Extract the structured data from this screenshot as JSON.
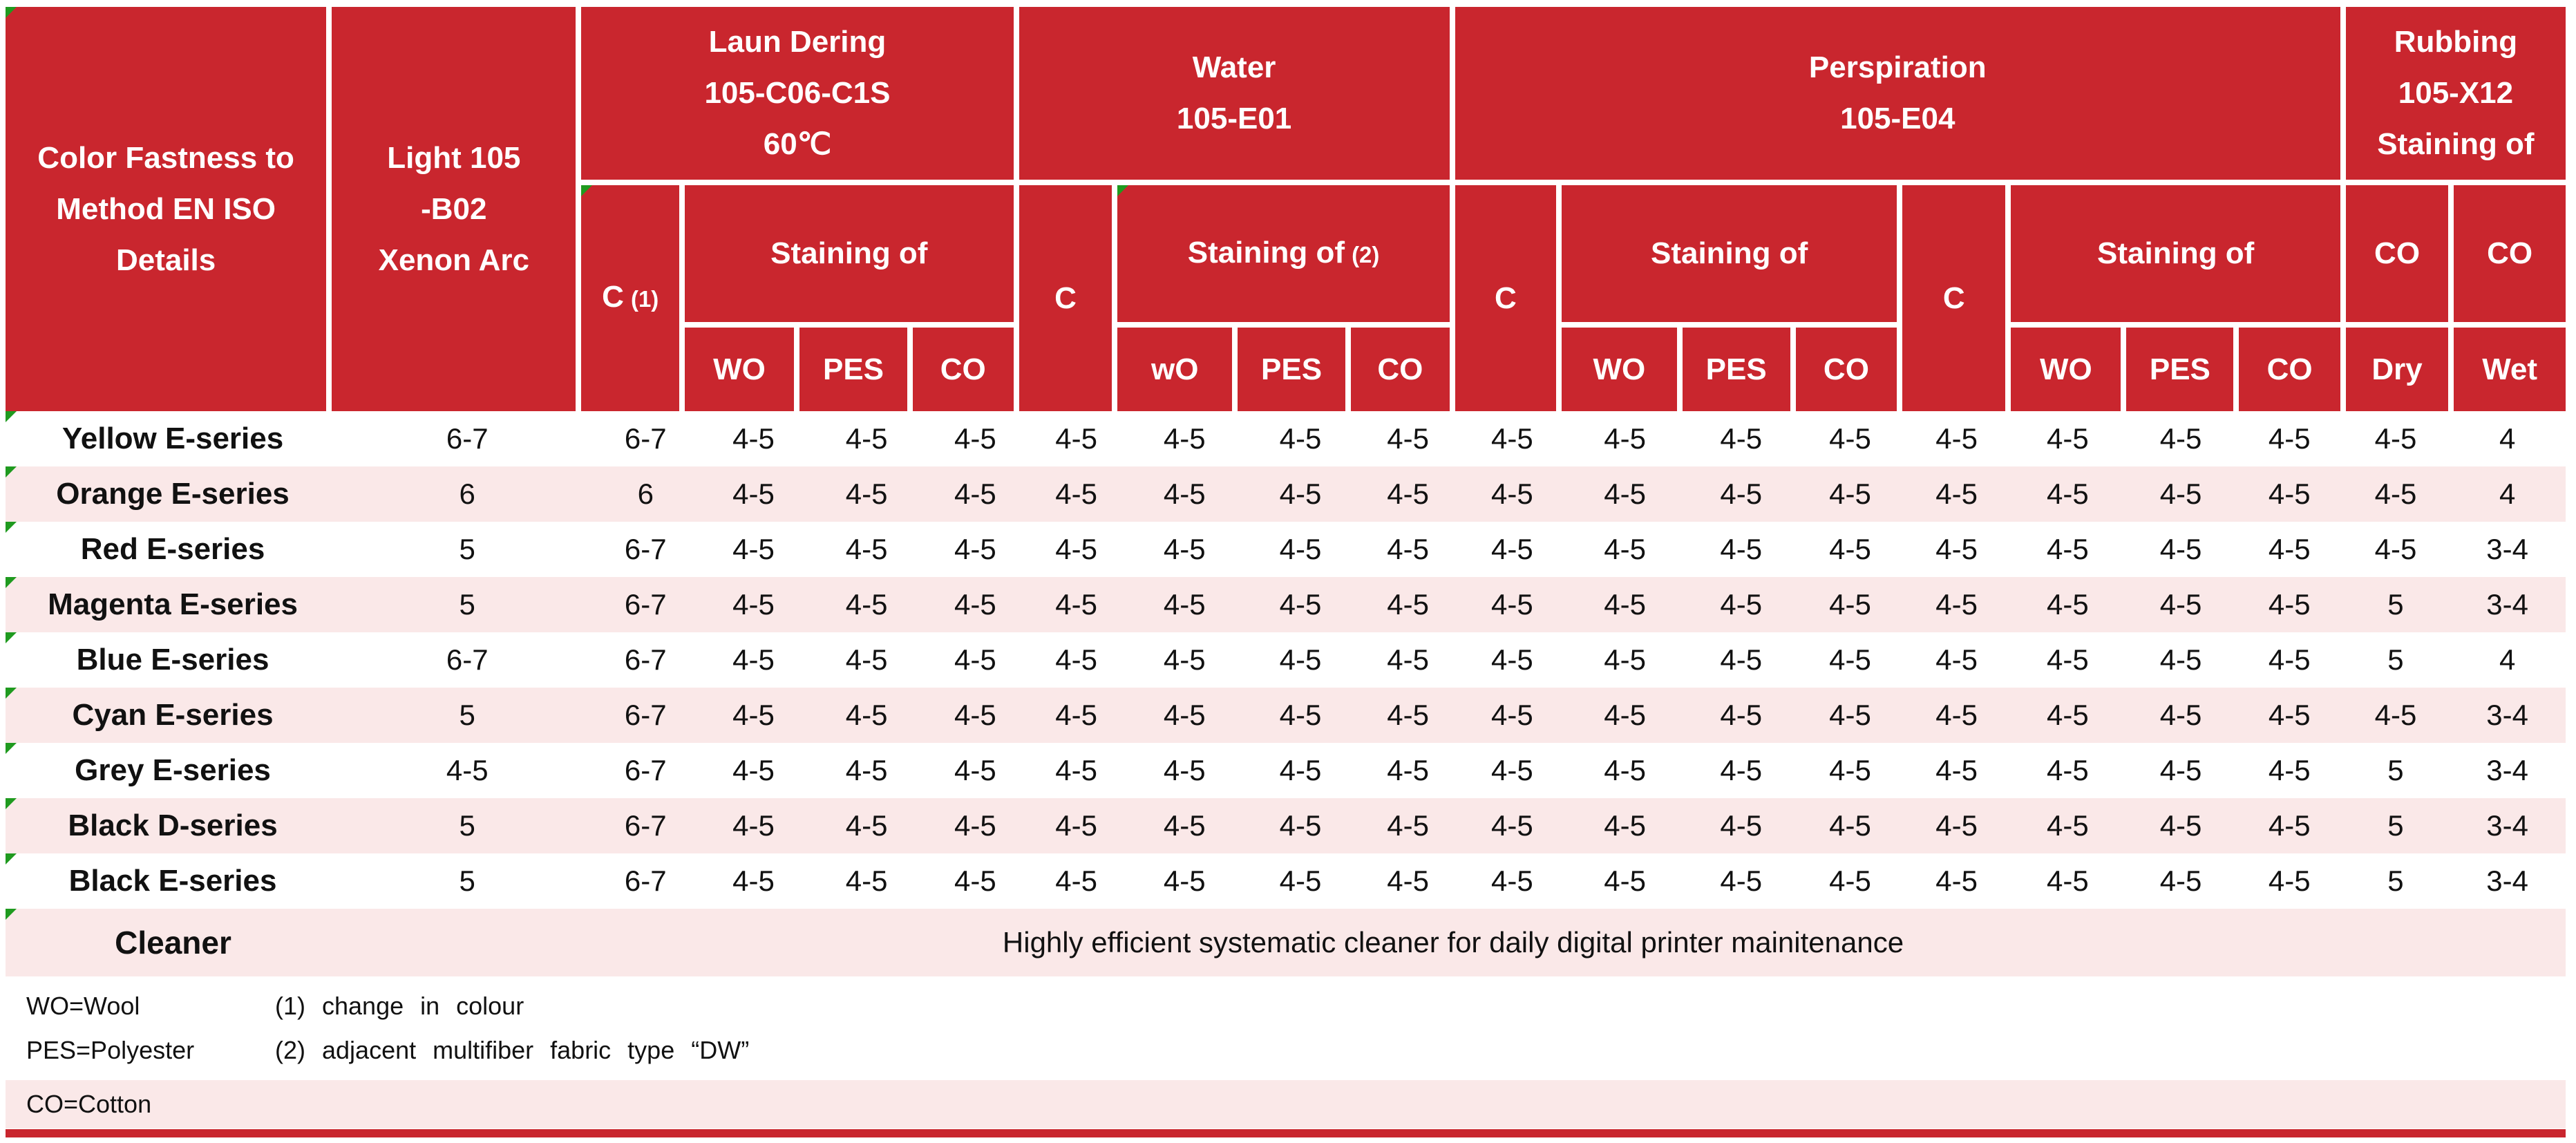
{
  "colors": {
    "header_red": "#C9262E",
    "row_pink": "#FAE8E8",
    "row_white": "#FFFFFF",
    "triangle_green": "#1F9A1F",
    "text": "#111111"
  },
  "header": {
    "col1": [
      "Color Fastness to",
      "Method EN ISO",
      "Details"
    ],
    "light": [
      "Light 105",
      "-B02",
      "Xenon Arc"
    ],
    "laundering": {
      "title": [
        "Laun Dering",
        "105-C06-C1S",
        "60℃"
      ],
      "change": "C",
      "change_note": "(1)",
      "staining": "Staining of",
      "fibers": [
        "WO",
        "PES",
        "CO"
      ]
    },
    "water": {
      "title": [
        "Water",
        "105-E01"
      ],
      "change": "C",
      "staining": "Staining of",
      "staining_note": "(2)",
      "fibers": [
        "wO",
        "PES",
        "CO"
      ]
    },
    "perspiration": {
      "title": [
        "Perspiration",
        "105-E04"
      ],
      "acid": {
        "change": "C",
        "staining": "Staining of",
        "fibers": [
          "WO",
          "PES",
          "CO"
        ]
      },
      "alkaline": {
        "change": "C",
        "staining": "Staining of",
        "fibers": [
          "WO",
          "PES",
          "CO"
        ]
      }
    },
    "rubbing": {
      "title": [
        "Rubbing",
        "105-X12",
        "Staining of"
      ],
      "co": [
        "CO",
        "CO"
      ],
      "conditions": [
        "Dry",
        "Wet"
      ]
    }
  },
  "rows": [
    {
      "label": "Yellow E-series",
      "values": [
        "6-7",
        "6-7",
        "4-5",
        "4-5",
        "4-5",
        "4-5",
        "4-5",
        "4-5",
        "4-5",
        "4-5",
        "4-5",
        "4-5",
        "4-5",
        "4-5",
        "4-5",
        "4-5",
        "4-5",
        "4-5",
        "4"
      ]
    },
    {
      "label": "Orange E-series",
      "values": [
        "6",
        "6",
        "4-5",
        "4-5",
        "4-5",
        "4-5",
        "4-5",
        "4-5",
        "4-5",
        "4-5",
        "4-5",
        "4-5",
        "4-5",
        "4-5",
        "4-5",
        "4-5",
        "4-5",
        "4-5",
        "4"
      ]
    },
    {
      "label": "Red E-series",
      "values": [
        "5",
        "6-7",
        "4-5",
        "4-5",
        "4-5",
        "4-5",
        "4-5",
        "4-5",
        "4-5",
        "4-5",
        "4-5",
        "4-5",
        "4-5",
        "4-5",
        "4-5",
        "4-5",
        "4-5",
        "4-5",
        "3-4"
      ]
    },
    {
      "label": "Magenta E-series",
      "values": [
        "5",
        "6-7",
        "4-5",
        "4-5",
        "4-5",
        "4-5",
        "4-5",
        "4-5",
        "4-5",
        "4-5",
        "4-5",
        "4-5",
        "4-5",
        "4-5",
        "4-5",
        "4-5",
        "4-5",
        "5",
        "3-4"
      ]
    },
    {
      "label": "Blue E-series",
      "values": [
        "6-7",
        "6-7",
        "4-5",
        "4-5",
        "4-5",
        "4-5",
        "4-5",
        "4-5",
        "4-5",
        "4-5",
        "4-5",
        "4-5",
        "4-5",
        "4-5",
        "4-5",
        "4-5",
        "4-5",
        "5",
        "4"
      ]
    },
    {
      "label": "Cyan E-series",
      "values": [
        "5",
        "6-7",
        "4-5",
        "4-5",
        "4-5",
        "4-5",
        "4-5",
        "4-5",
        "4-5",
        "4-5",
        "4-5",
        "4-5",
        "4-5",
        "4-5",
        "4-5",
        "4-5",
        "4-5",
        "4-5",
        "3-4"
      ]
    },
    {
      "label": "Grey E-series",
      "values": [
        "4-5",
        "6-7",
        "4-5",
        "4-5",
        "4-5",
        "4-5",
        "4-5",
        "4-5",
        "4-5",
        "4-5",
        "4-5",
        "4-5",
        "4-5",
        "4-5",
        "4-5",
        "4-5",
        "4-5",
        "5",
        "3-4"
      ]
    },
    {
      "label": "Black D-series",
      "values": [
        "5",
        "6-7",
        "4-5",
        "4-5",
        "4-5",
        "4-5",
        "4-5",
        "4-5",
        "4-5",
        "4-5",
        "4-5",
        "4-5",
        "4-5",
        "4-5",
        "4-5",
        "4-5",
        "4-5",
        "5",
        "3-4"
      ]
    },
    {
      "label": "Black E-series",
      "values": [
        "5",
        "6-7",
        "4-5",
        "4-5",
        "4-5",
        "4-5",
        "4-5",
        "4-5",
        "4-5",
        "4-5",
        "4-5",
        "4-5",
        "4-5",
        "4-5",
        "4-5",
        "4-5",
        "4-5",
        "5",
        "3-4"
      ]
    }
  ],
  "cleaner": {
    "label": "Cleaner",
    "description": "Highly efficient systematic cleaner for daily digital printer mainitenance"
  },
  "footnotes": {
    "wo": "WO=Wool",
    "pes": "PES=Polyester",
    "co": "CO=Cotton",
    "note1": "(1) change in colour",
    "note2": "(2) adjacent multifiber fabric type “DW”"
  }
}
